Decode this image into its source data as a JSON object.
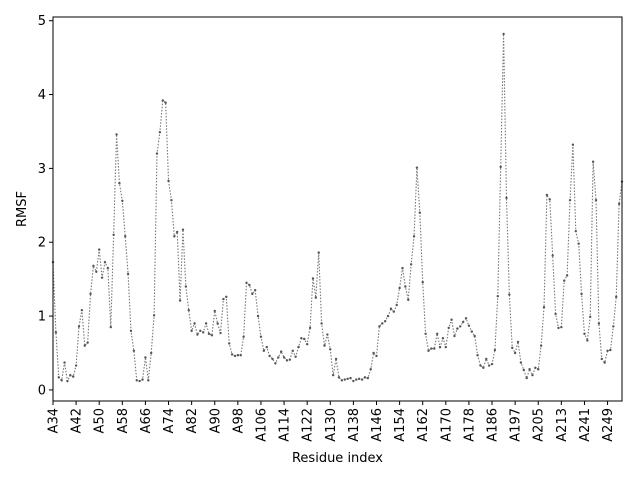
{
  "chart_data": {
    "type": "line",
    "xlabel": "Residue index",
    "ylabel": "RMSF",
    "ylim": [
      -0.15,
      5.05
    ],
    "yticks": [
      0,
      1,
      2,
      3,
      4,
      5
    ],
    "grid": false,
    "line_style": "dotted",
    "marker": "point",
    "colors": {
      "line": "#777777",
      "marker": "#555555",
      "axes": "#000000"
    },
    "xtick_labels": [
      "A34",
      "A42",
      "A50",
      "A58",
      "A66",
      "A74",
      "A82",
      "A90",
      "A98",
      "A106",
      "A114",
      "A122",
      "A130",
      "A138",
      "A146",
      "A154",
      "A162",
      "A170",
      "A178",
      "A186",
      "A197",
      "A205",
      "A213",
      "A241",
      "A249"
    ],
    "xtick_positions": [
      0,
      8,
      16,
      24,
      32,
      40,
      48,
      56,
      64,
      72,
      80,
      88,
      96,
      104,
      112,
      120,
      128,
      136,
      144,
      152,
      160,
      168,
      176,
      184,
      192
    ],
    "x": [
      0,
      1,
      2,
      3,
      4,
      5,
      6,
      7,
      8,
      9,
      10,
      11,
      12,
      13,
      14,
      15,
      16,
      17,
      18,
      19,
      20,
      21,
      22,
      23,
      24,
      25,
      26,
      27,
      28,
      29,
      30,
      31,
      32,
      33,
      34,
      35,
      36,
      37,
      38,
      39,
      40,
      41,
      42,
      43,
      44,
      45,
      46,
      47,
      48,
      49,
      50,
      51,
      52,
      53,
      54,
      55,
      56,
      57,
      58,
      59,
      60,
      61,
      62,
      63,
      64,
      65,
      66,
      67,
      68,
      69,
      70,
      71,
      72,
      73,
      74,
      75,
      76,
      77,
      78,
      79,
      80,
      81,
      82,
      83,
      84,
      85,
      86,
      87,
      88,
      89,
      90,
      91,
      92,
      93,
      94,
      95,
      96,
      97,
      98,
      99,
      100,
      101,
      102,
      103,
      104,
      105,
      106,
      107,
      108,
      109,
      110,
      111,
      112,
      113,
      114,
      115,
      116,
      117,
      118,
      119,
      120,
      121,
      122,
      123,
      124,
      125,
      126,
      127,
      128,
      129,
      130,
      131,
      132,
      133,
      134,
      135,
      136,
      137,
      138,
      139,
      140,
      141,
      142,
      143,
      144,
      145,
      146,
      147,
      148,
      149,
      150,
      151,
      152,
      153,
      154,
      155,
      156,
      157,
      158,
      159,
      160,
      161,
      162,
      163,
      164,
      165,
      166,
      167,
      168,
      169,
      170,
      171,
      172,
      173,
      174,
      175,
      176,
      177,
      178,
      179,
      180,
      181,
      182,
      183,
      184,
      185,
      186,
      187,
      188,
      189,
      190,
      191,
      192,
      193,
      194,
      195,
      196,
      197
    ],
    "values": [
      1.73,
      0.78,
      0.17,
      0.13,
      0.37,
      0.12,
      0.2,
      0.18,
      0.33,
      0.86,
      1.08,
      0.6,
      0.64,
      1.3,
      1.68,
      1.6,
      1.9,
      1.52,
      1.73,
      1.65,
      0.85,
      2.1,
      3.46,
      2.8,
      2.56,
      2.08,
      1.57,
      0.8,
      0.53,
      0.13,
      0.12,
      0.14,
      0.44,
      0.13,
      0.5,
      1.01,
      3.2,
      3.49,
      3.92,
      3.89,
      2.83,
      2.57,
      2.08,
      2.14,
      1.21,
      2.17,
      1.4,
      1.08,
      0.8,
      0.9,
      0.75,
      0.8,
      0.78,
      0.9,
      0.76,
      0.74,
      1.07,
      0.9,
      0.77,
      1.23,
      1.26,
      0.63,
      0.48,
      0.46,
      0.47,
      0.47,
      0.72,
      1.45,
      1.42,
      1.3,
      1.35,
      1.0,
      0.72,
      0.53,
      0.58,
      0.46,
      0.42,
      0.36,
      0.44,
      0.52,
      0.44,
      0.4,
      0.41,
      0.53,
      0.45,
      0.58,
      0.7,
      0.69,
      0.62,
      0.84,
      1.51,
      1.25,
      1.86,
      0.9,
      0.6,
      0.75,
      0.55,
      0.2,
      0.42,
      0.17,
      0.13,
      0.14,
      0.15,
      0.16,
      0.12,
      0.14,
      0.15,
      0.14,
      0.17,
      0.16,
      0.28,
      0.5,
      0.46,
      0.86,
      0.9,
      0.93,
      1.0,
      1.1,
      1.06,
      1.15,
      1.38,
      1.65,
      1.4,
      1.22,
      1.7,
      2.08,
      3.01,
      2.4,
      1.46,
      0.76,
      0.53,
      0.56,
      0.56,
      0.76,
      0.58,
      0.7,
      0.58,
      0.84,
      0.95,
      0.73,
      0.83,
      0.86,
      0.92,
      0.97,
      0.87,
      0.79,
      0.73,
      0.47,
      0.33,
      0.3,
      0.42,
      0.33,
      0.35,
      0.54,
      1.27,
      3.02,
      4.82,
      2.6,
      1.29,
      0.57,
      0.5,
      0.65,
      0.37,
      0.27,
      0.16,
      0.28,
      0.2,
      0.3,
      0.28,
      0.6,
      1.12,
      2.64,
      2.58,
      1.82,
      1.03,
      0.84,
      0.85,
      1.48,
      1.55,
      2.57,
      3.32,
      2.15,
      1.98,
      1.3,
      0.76,
      0.67,
      0.99,
      3.09,
      2.57,
      0.9,
      0.42,
      0.37,
      0.53,
      0.54,
      0.86,
      1.26,
      2.52,
      2.82
    ]
  }
}
